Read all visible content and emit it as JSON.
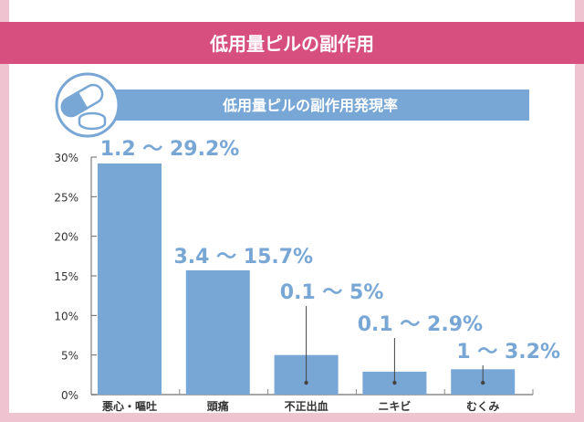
{
  "header": {
    "title": "低用量ピルの副作用"
  },
  "colors": {
    "header": "#d64f7f",
    "bar": "#78a7d6",
    "label": "#78a7d6",
    "background": "#efc3d0"
  },
  "icon": "pill-capsule-icon",
  "chart_data": {
    "type": "bar",
    "title": "低用量ピルの副作用発現率",
    "categories": [
      "悪心・嘔吐",
      "頭痛",
      "不正出血",
      "ニキビ",
      "むくみ"
    ],
    "values": [
      29.2,
      15.7,
      5,
      2.9,
      3.2
    ],
    "ranges": [
      [
        1.2,
        29.2
      ],
      [
        3.4,
        15.7
      ],
      [
        0.1,
        5
      ],
      [
        0.1,
        2.9
      ],
      [
        1,
        3.2
      ]
    ],
    "data_labels": [
      "1.2 ～ 29.2%",
      "3.4 ～ 15.7%",
      "0.1 ～ 5%",
      "0.1 ～ 2.9%",
      "1 ～ 3.2%"
    ],
    "yticks": [
      "0%",
      "5%",
      "10%",
      "15%",
      "20%",
      "25%",
      "30%"
    ],
    "ylim": [
      0,
      30
    ],
    "grid": false
  }
}
